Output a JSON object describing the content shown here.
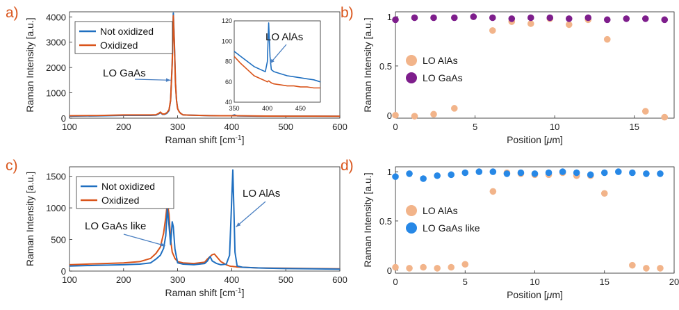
{
  "colors": {
    "blue": "#1f6fc0",
    "orange": "#d9541a",
    "purple": "#7e1e8c",
    "peach": "#f2b48a",
    "bright_blue": "#2788e6",
    "panel_label": "#d9541a",
    "arrow": "#4a7fc1"
  },
  "chart_data": [
    {
      "id": "a",
      "panel_label": "a)",
      "type": "line",
      "xlabel": "Raman shift [cm",
      "xlabel_sup": "-1",
      "xlabel_end": "]",
      "ylabel": "Raman Intensity [a.u.]",
      "xlim": [
        100,
        600
      ],
      "ylim": [
        0,
        4200
      ],
      "xticks": [
        100,
        200,
        300,
        400,
        500,
        600
      ],
      "yticks": [
        0,
        1000,
        2000,
        3000,
        4000
      ],
      "legend": {
        "placement": "top-left",
        "entries": [
          "Not oxidized",
          "Oxidized"
        ]
      },
      "annotations": [
        {
          "text": "LO GaAs",
          "arrow_to": [
            292,
            1500
          ]
        }
      ],
      "series": [
        {
          "name": "Not oxidized",
          "color": "blue",
          "x": [
            100,
            150,
            200,
            250,
            260,
            265,
            268,
            272,
            276,
            280,
            284,
            287,
            290,
            292,
            294,
            296,
            298,
            300,
            303,
            306,
            310,
            320,
            340,
            360,
            380,
            400,
            405,
            410,
            450,
            500,
            550,
            600
          ],
          "y": [
            80,
            90,
            110,
            110,
            120,
            170,
            220,
            150,
            150,
            190,
            300,
            700,
            2200,
            4150,
            3000,
            1400,
            700,
            380,
            250,
            180,
            130,
            120,
            110,
            100,
            95,
            95,
            130,
            90,
            80,
            80,
            80,
            75
          ]
        },
        {
          "name": "Oxidized",
          "color": "orange",
          "x": [
            100,
            150,
            200,
            250,
            260,
            265,
            268,
            272,
            276,
            280,
            284,
            287,
            290,
            292,
            294,
            296,
            298,
            300,
            303,
            306,
            310,
            320,
            340,
            360,
            380,
            400,
            405,
            410,
            450,
            500,
            550,
            600
          ],
          "y": [
            95,
            105,
            125,
            125,
            135,
            190,
            240,
            165,
            165,
            210,
            330,
            720,
            2150,
            4050,
            2900,
            1350,
            690,
            370,
            250,
            180,
            130,
            120,
            110,
            100,
            95,
            95,
            100,
            95,
            85,
            80,
            80,
            75
          ]
        }
      ],
      "inset": {
        "annotation": "LO AlAs",
        "xlim": [
          350,
          480
        ],
        "ylim": [
          40,
          120
        ],
        "xticks": [
          350,
          400,
          450
        ],
        "yticks": [
          40,
          60,
          80,
          100,
          120
        ],
        "series": [
          {
            "name": "Not oxidized",
            "color": "blue",
            "x": [
              350,
              360,
              370,
              380,
              390,
              397,
              400,
              402,
              404,
              406,
              410,
              420,
              430,
              440,
              450,
              460,
              470,
              480
            ],
            "y": [
              90,
              85,
              80,
              75,
              72,
              70,
              80,
              118,
              85,
              72,
              70,
              68,
              66,
              65,
              64,
              63,
              62,
              60
            ]
          },
          {
            "name": "Oxidized",
            "color": "orange",
            "x": [
              350,
              360,
              370,
              380,
              390,
              397,
              400,
              402,
              404,
              406,
              410,
              420,
              430,
              440,
              450,
              460,
              470,
              480
            ],
            "y": [
              85,
              78,
              72,
              66,
              63,
              61,
              60,
              61,
              60,
              59,
              58,
              57,
              56,
              56,
              55,
              55,
              54,
              54
            ]
          }
        ]
      }
    },
    {
      "id": "b",
      "panel_label": "b)",
      "type": "scatter",
      "xlabel": "Position [",
      "xlabel_greek": "μ",
      "xlabel_end": "m]",
      "ylabel": "Raman Intensity [a.u.]",
      "xlim": [
        0,
        17.5
      ],
      "ylim": [
        -0.03,
        1.05
      ],
      "xticks": [
        0,
        5,
        10,
        15
      ],
      "yticks": [
        0,
        0.5,
        1
      ],
      "ytick_labels": [
        "0",
        "0.5",
        "1"
      ],
      "legend": {
        "placement": "center-left",
        "entries": [
          "LO AlAs",
          "LO GaAs"
        ]
      },
      "series": [
        {
          "name": "LO AlAs",
          "color": "peach",
          "x": [
            0,
            1.2,
            2.4,
            3.7,
            6.1,
            7.3,
            8.5,
            9.7,
            10.9,
            12.1,
            13.3,
            15.7,
            16.9
          ],
          "y": [
            0,
            -0.01,
            0.01,
            0.07,
            0.86,
            0.95,
            0.93,
            0.98,
            0.92,
            0.97,
            0.77,
            0.04,
            -0.02
          ]
        },
        {
          "name": "LO GaAs",
          "color": "purple",
          "x": [
            0,
            1.2,
            2.4,
            3.7,
            4.9,
            6.1,
            7.3,
            8.5,
            9.7,
            10.9,
            12.1,
            13.3,
            14.5,
            15.7,
            16.9
          ],
          "y": [
            0.97,
            0.99,
            0.99,
            0.99,
            1.0,
            0.99,
            0.98,
            0.99,
            0.99,
            0.98,
            0.99,
            0.97,
            0.98,
            0.98,
            0.97
          ]
        }
      ]
    },
    {
      "id": "c",
      "panel_label": "c)",
      "type": "line",
      "xlabel": "Raman shift [cm",
      "xlabel_sup": "-1",
      "xlabel_end": "]",
      "ylabel": "Raman Intensity [a.u.]",
      "xlim": [
        100,
        600
      ],
      "ylim": [
        0,
        1650
      ],
      "xticks": [
        100,
        200,
        300,
        400,
        500,
        600
      ],
      "yticks": [
        0,
        500,
        1000,
        1500
      ],
      "legend": {
        "placement": "top-right",
        "entries": [
          "Not oxidized",
          "Oxidized"
        ]
      },
      "annotations": [
        {
          "text": "LO AlAs",
          "arrow_to": [
            408,
            700
          ]
        },
        {
          "text": "LO GaAs like",
          "arrow_to": [
            277,
            400
          ]
        }
      ],
      "series": [
        {
          "name": "Not oxidized",
          "color": "blue",
          "x": [
            100,
            150,
            200,
            230,
            250,
            260,
            268,
            274,
            278,
            281,
            284,
            287,
            290,
            292,
            295,
            300,
            310,
            330,
            350,
            355,
            360,
            364,
            368,
            372,
            380,
            390,
            396,
            399,
            402,
            404,
            406,
            410,
            420,
            450,
            500,
            550,
            600
          ],
          "y": [
            80,
            90,
            100,
            110,
            130,
            190,
            250,
            360,
            560,
            1000,
            720,
            420,
            780,
            700,
            350,
            130,
            110,
            100,
            120,
            160,
            230,
            160,
            140,
            120,
            100,
            110,
            250,
            900,
            1600,
            1000,
            300,
            80,
            60,
            50,
            40,
            35,
            30
          ]
        },
        {
          "name": "Oxidized",
          "color": "orange",
          "x": [
            100,
            150,
            200,
            230,
            250,
            260,
            268,
            274,
            278,
            281,
            284,
            287,
            290,
            292,
            295,
            300,
            310,
            330,
            350,
            355,
            360,
            364,
            368,
            372,
            380,
            390,
            396,
            399,
            402,
            404,
            406,
            410,
            420,
            450,
            500,
            550,
            600
          ],
          "y": [
            100,
            115,
            130,
            150,
            200,
            280,
            380,
            600,
            850,
            1080,
            900,
            500,
            300,
            260,
            200,
            150,
            130,
            120,
            140,
            190,
            230,
            260,
            270,
            230,
            150,
            100,
            80,
            75,
            75,
            70,
            70,
            65,
            60,
            50,
            45,
            40,
            35
          ]
        }
      ]
    },
    {
      "id": "d",
      "panel_label": "d)",
      "type": "scatter",
      "xlabel": "Position [",
      "xlabel_greek": "μ",
      "xlabel_end": "m]",
      "ylabel": "Raman Intensity [a.u.]",
      "xlim": [
        0,
        20
      ],
      "ylim": [
        -0.03,
        1.05
      ],
      "xticks": [
        0,
        5,
        10,
        15,
        20
      ],
      "yticks": [
        0,
        0.5,
        1
      ],
      "ytick_labels": [
        "0",
        "0.5",
        "1"
      ],
      "legend": {
        "placement": "center-left",
        "entries": [
          "LO AlAs",
          "LO GaAs like"
        ]
      },
      "series": [
        {
          "name": "LO AlAs",
          "color": "peach",
          "x": [
            0,
            1,
            2,
            3,
            4,
            5,
            7,
            8,
            9,
            10,
            11,
            12,
            13,
            14,
            15,
            17,
            18,
            19
          ],
          "y": [
            0.03,
            0.02,
            0.03,
            0.02,
            0.03,
            0.06,
            0.8,
            0.99,
            0.98,
            0.97,
            0.97,
            0.99,
            0.96,
            0.96,
            0.78,
            0.05,
            0.02,
            0.02
          ]
        },
        {
          "name": "LO GaAs like",
          "color": "bright_blue",
          "x": [
            0,
            1,
            2,
            3,
            4,
            5,
            6,
            7,
            8,
            9,
            10,
            11,
            12,
            13,
            14,
            15,
            16,
            17,
            18,
            19
          ],
          "y": [
            0.95,
            0.98,
            0.93,
            0.96,
            0.97,
            0.99,
            1.0,
            1.0,
            0.98,
            0.99,
            0.98,
            0.99,
            1.0,
            0.99,
            0.97,
            0.99,
            1.0,
            0.99,
            0.98,
            0.98
          ]
        }
      ]
    }
  ]
}
